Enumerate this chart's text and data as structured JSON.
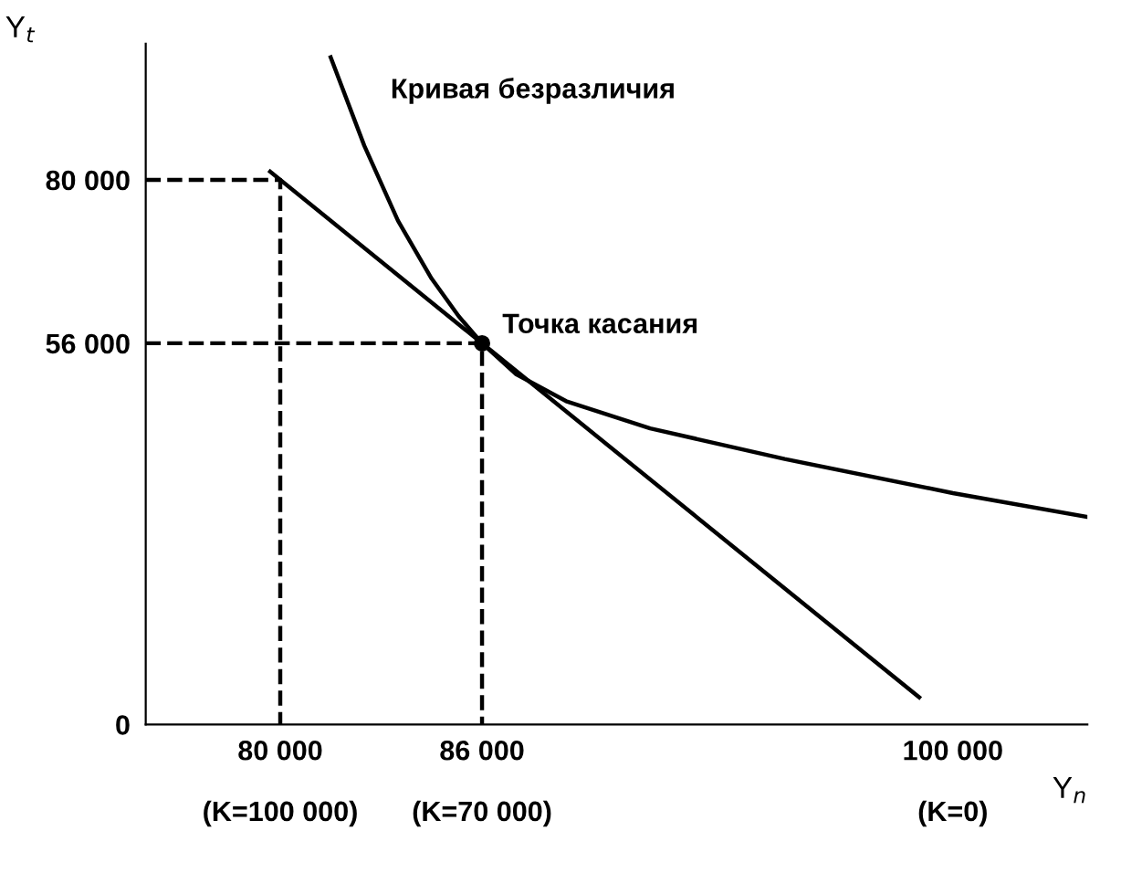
{
  "chart_data": {
    "type": "line",
    "xlabel": "Y$_{n}$",
    "ylabel": "Y$_{t}$",
    "xlim": [
      76000,
      104000
    ],
    "ylim": [
      0,
      100000
    ],
    "xticks": [
      {
        "value": 80000,
        "label": "80 000"
      },
      {
        "value": 86000,
        "label": "86 000"
      },
      {
        "value": 100000,
        "label": "100 000"
      }
    ],
    "yticks": [
      {
        "value": 0,
        "label": "0"
      },
      {
        "value": 56000,
        "label": "56 000"
      },
      {
        "value": 80000,
        "label": "80 000"
      }
    ],
    "grid": false,
    "legend": false,
    "series": [
      {
        "color": "#000000",
        "line_style": "solid",
        "x": [
          81500,
          82500,
          83500,
          84500,
          85300,
          86000,
          87000,
          88500,
          91000,
          95000,
          100000,
          104000
        ],
        "values": [
          98000,
          85000,
          74000,
          65500,
          60000,
          56000,
          51500,
          47500,
          43500,
          39000,
          34000,
          30500
        ]
      },
      {
        "color": "#000000",
        "line_style": "solid",
        "x": [
          79700,
          99000
        ],
        "values": [
          81200,
          4000
        ]
      },
      {
        "color": "#000000",
        "line_style": "dashed",
        "x": [
          76000,
          80000,
          80000
        ],
        "values": [
          80000,
          80000,
          0
        ]
      },
      {
        "color": "#000000",
        "line_style": "dashed",
        "x": [
          76000,
          86000,
          86000
        ],
        "values": [
          56000,
          56000,
          0
        ]
      },
      {
        "type": "scatter",
        "color": "#000000",
        "marker": "circle",
        "x": [
          86000
        ],
        "values": [
          56000
        ]
      }
    ],
    "annotations": [
      "Кривая безразличия",
      {
        "text": "Точка касания",
        "x": 86000,
        "y": 56000
      },
      "(K=100 000)",
      "(K=70 000)",
      "(K=0)"
    ]
  }
}
